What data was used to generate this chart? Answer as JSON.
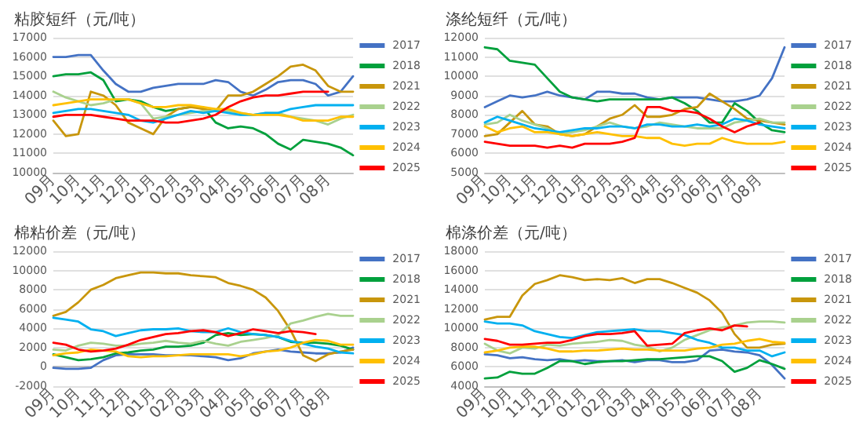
{
  "chart_data": [
    {
      "type": "line",
      "title": "粘胶短纤（元/吨）",
      "categories": [
        "09月",
        null,
        "10月",
        null,
        "11月",
        null,
        "12月",
        null,
        "01月",
        null,
        "02月",
        null,
        "03月",
        null,
        "04月",
        null,
        "05月",
        null,
        "06月",
        null,
        "07月",
        null,
        "08月",
        null,
        null
      ],
      "ylim": [
        10000,
        17000
      ],
      "yticks": [
        10000,
        11000,
        12000,
        13000,
        14000,
        15000,
        16000,
        17000
      ],
      "grid": "y",
      "legend": "right",
      "series": [
        {
          "name": "2017",
          "color": "#4472c4",
          "values": [
            16000,
            16000,
            16100,
            16100,
            15300,
            14600,
            14200,
            14200,
            14400,
            14500,
            14600,
            14600,
            14600,
            14800,
            14700,
            14200,
            14000,
            14300,
            14700,
            14800,
            14800,
            14600,
            14000,
            14200,
            15000
          ]
        },
        {
          "name": "2018",
          "color": "#00a03c",
          "values": [
            15000,
            15100,
            15100,
            15200,
            14800,
            13700,
            13800,
            13700,
            13400,
            13200,
            13300,
            13400,
            13400,
            12600,
            12300,
            12400,
            12300,
            12000,
            11500,
            11200,
            11700,
            11600,
            11500,
            11300,
            10900
          ]
        },
        {
          "name": "2021",
          "color": "#c8960c",
          "values": [
            12700,
            11900,
            12000,
            14200,
            14000,
            13500,
            12600,
            12300,
            12000,
            12900,
            13300,
            13400,
            13300,
            13200,
            14000,
            14000,
            14200,
            14600,
            15000,
            15500,
            15600,
            15300,
            14500,
            14200,
            14200
          ]
        },
        {
          "name": "2022",
          "color": "#a9d18e",
          "values": [
            14200,
            13900,
            13700,
            13500,
            13600,
            13800,
            13800,
            13600,
            12800,
            12900,
            13000,
            13100,
            13200,
            13200,
            13200,
            13100,
            13000,
            13100,
            13100,
            12900,
            12800,
            12700,
            12500,
            12800,
            13000
          ]
        },
        {
          "name": "2023",
          "color": "#00b0f0",
          "values": [
            13100,
            13200,
            13300,
            13300,
            13200,
            13100,
            13000,
            12700,
            12600,
            12800,
            13000,
            13200,
            13100,
            13200,
            13100,
            13000,
            13000,
            13100,
            13100,
            13300,
            13400,
            13500,
            13500,
            13500,
            13500
          ]
        },
        {
          "name": "2024",
          "color": "#ffc000",
          "values": [
            13500,
            13600,
            13700,
            13800,
            13800,
            13800,
            13800,
            13600,
            13400,
            13400,
            13500,
            13500,
            13400,
            13300,
            13300,
            13100,
            13000,
            13000,
            13000,
            12900,
            12700,
            12700,
            12700,
            12900,
            12900
          ]
        },
        {
          "name": "2025",
          "color": "#ff0000",
          "values": [
            12900,
            13000,
            13000,
            13000,
            12900,
            12800,
            12700,
            12700,
            12700,
            12600,
            12600,
            12700,
            12800,
            13000,
            13400,
            13700,
            13900,
            14000,
            14000,
            14100,
            14200,
            14200,
            14200,
            null,
            null
          ]
        }
      ]
    },
    {
      "type": "line",
      "title": "涤纶短纤（元/吨）",
      "categories": [
        "09月",
        null,
        "10月",
        null,
        "11月",
        null,
        "12月",
        null,
        "01月",
        null,
        "02月",
        null,
        "03月",
        null,
        "04月",
        null,
        "05月",
        null,
        "06月",
        null,
        "07月",
        null,
        "08月",
        null,
        null
      ],
      "ylim": [
        5000,
        12000
      ],
      "yticks": [
        5000,
        6000,
        7000,
        8000,
        9000,
        10000,
        11000,
        12000
      ],
      "grid": "y",
      "legend": "right",
      "series": [
        {
          "name": "2017",
          "color": "#4472c4",
          "values": [
            8400,
            8700,
            9000,
            8900,
            9000,
            9200,
            9000,
            8900,
            8800,
            9200,
            9200,
            9100,
            9100,
            8900,
            8800,
            8900,
            8900,
            8900,
            8800,
            8700,
            8700,
            8800,
            9000,
            9900,
            11500
          ]
        },
        {
          "name": "2018",
          "color": "#00a03c",
          "values": [
            11500,
            11400,
            10800,
            10700,
            10600,
            9900,
            9200,
            8900,
            8800,
            8700,
            8800,
            8800,
            8800,
            8800,
            8800,
            8900,
            8600,
            8200,
            7600,
            7600,
            8600,
            8200,
            7600,
            7200,
            7100
          ]
        },
        {
          "name": "2021",
          "color": "#c8960c",
          "values": [
            6900,
            7000,
            7600,
            8200,
            7500,
            7400,
            7000,
            6900,
            7000,
            7400,
            7800,
            8000,
            8500,
            7900,
            7900,
            8000,
            8300,
            8400,
            9100,
            8700,
            8300,
            7800,
            7700,
            7600,
            7500
          ]
        },
        {
          "name": "2022",
          "color": "#a9d18e",
          "values": [
            7500,
            7600,
            8000,
            7700,
            7500,
            7300,
            7000,
            7100,
            7200,
            7400,
            7600,
            7400,
            7300,
            7400,
            7600,
            7500,
            7400,
            7300,
            7300,
            7300,
            7600,
            7700,
            7800,
            7600,
            7600
          ]
        },
        {
          "name": "2023",
          "color": "#00b0f0",
          "values": [
            7600,
            7900,
            7700,
            7500,
            7300,
            7200,
            7100,
            7200,
            7300,
            7300,
            7400,
            7400,
            7300,
            7500,
            7500,
            7400,
            7400,
            7500,
            7400,
            7500,
            7800,
            7700,
            7500,
            7400,
            7300
          ]
        },
        {
          "name": "2024",
          "color": "#ffc000",
          "values": [
            7400,
            7100,
            7300,
            7400,
            7100,
            7100,
            7000,
            6900,
            7000,
            7100,
            7000,
            6900,
            6900,
            6800,
            6800,
            6500,
            6400,
            6500,
            6500,
            6800,
            6600,
            6500,
            6500,
            6500,
            6600
          ]
        },
        {
          "name": "2025",
          "color": "#ff0000",
          "values": [
            6600,
            6500,
            6400,
            6400,
            6400,
            6300,
            6400,
            6300,
            6500,
            6500,
            6500,
            6600,
            6800,
            8400,
            8400,
            8200,
            8200,
            8100,
            7800,
            7400,
            7100,
            7400,
            7600,
            null,
            null
          ]
        }
      ]
    },
    {
      "type": "line",
      "title": "棉粘价差（元/吨）",
      "categories": [
        "09月",
        null,
        "10月",
        null,
        "11月",
        null,
        "12月",
        null,
        "01月",
        null,
        "02月",
        null,
        "03月",
        null,
        "04月",
        null,
        "05月",
        null,
        "06月",
        null,
        "07月",
        null,
        "08月",
        null,
        null
      ],
      "ylim": [
        -2000,
        12000
      ],
      "yticks": [
        -2000,
        0,
        2000,
        4000,
        6000,
        8000,
        10000,
        12000
      ],
      "grid": "y",
      "legend": "right",
      "series": [
        {
          "name": "2017",
          "color": "#4472c4",
          "values": [
            -100,
            -200,
            -200,
            -100,
            700,
            1200,
            1300,
            1300,
            1300,
            1200,
            1200,
            1200,
            1100,
            1000,
            700,
            900,
            1400,
            1600,
            1800,
            1600,
            1500,
            1400,
            1400,
            1500,
            2000
          ]
        },
        {
          "name": "2018",
          "color": "#00a03c",
          "values": [
            1300,
            1000,
            700,
            800,
            1000,
            1400,
            1500,
            1700,
            1800,
            2100,
            2100,
            2200,
            2500,
            3300,
            3500,
            3300,
            3400,
            3300,
            3100,
            2600,
            2500,
            2500,
            2400,
            2200,
            1800
          ]
        },
        {
          "name": "2021",
          "color": "#c8960c",
          "values": [
            5300,
            5700,
            6700,
            8000,
            8500,
            9200,
            9500,
            9800,
            9800,
            9700,
            9700,
            9500,
            9400,
            9300,
            8700,
            8400,
            8000,
            7200,
            5800,
            3800,
            1200,
            600,
            1300,
            1600,
            1800
          ]
        },
        {
          "name": "2022",
          "color": "#a9d18e",
          "values": [
            1800,
            1700,
            2200,
            2500,
            2400,
            2200,
            2200,
            2400,
            2500,
            2700,
            2500,
            2400,
            2700,
            2400,
            2200,
            2600,
            2800,
            3000,
            3300,
            4500,
            4800,
            5200,
            5500,
            5300,
            5300
          ]
        },
        {
          "name": "2023",
          "color": "#00b0f0",
          "values": [
            5100,
            4900,
            4700,
            3900,
            3700,
            3200,
            3500,
            3800,
            3900,
            3900,
            4000,
            3700,
            3600,
            3600,
            4000,
            3600,
            3400,
            3300,
            3100,
            2700,
            2400,
            2100,
            1900,
            1500,
            1400
          ]
        },
        {
          "name": "2024",
          "color": "#ffc000",
          "values": [
            1200,
            1400,
            1500,
            1800,
            1700,
            1600,
            1100,
            1000,
            1100,
            1100,
            1200,
            1300,
            1300,
            1300,
            1300,
            1100,
            1300,
            1600,
            1700,
            2000,
            2500,
            2800,
            2700,
            2300,
            2300
          ]
        },
        {
          "name": "2025",
          "color": "#ff0000",
          "values": [
            2500,
            2300,
            1800,
            1600,
            1700,
            1900,
            2300,
            2800,
            3100,
            3400,
            3500,
            3700,
            3800,
            3600,
            3200,
            3500,
            3900,
            3700,
            3500,
            3700,
            3600,
            3400,
            null,
            null,
            null
          ]
        }
      ]
    },
    {
      "type": "line",
      "title": "棉涤价差（元/吨）",
      "categories": [
        "09月",
        null,
        "10月",
        null,
        "11月",
        null,
        "12月",
        null,
        "01月",
        null,
        "02月",
        null,
        "03月",
        null,
        "04月",
        null,
        "05月",
        null,
        "06月",
        null,
        "07月",
        null,
        "08月",
        null,
        null
      ],
      "ylim": [
        4000,
        18000
      ],
      "yticks": [
        4000,
        6000,
        8000,
        10000,
        12000,
        14000,
        16000,
        18000
      ],
      "grid": "y",
      "legend": "right",
      "series": [
        {
          "name": "2017",
          "color": "#4472c4",
          "values": [
            7300,
            7200,
            6900,
            7000,
            6800,
            6700,
            6800,
            6600,
            6700,
            6600,
            6600,
            6700,
            6500,
            6700,
            6700,
            6500,
            6500,
            6700,
            7700,
            7800,
            7600,
            7500,
            7200,
            6200,
            4800
          ]
        },
        {
          "name": "2018",
          "color": "#00a03c",
          "values": [
            4800,
            4900,
            5500,
            5300,
            5300,
            5900,
            6600,
            6600,
            6300,
            6500,
            6600,
            6600,
            6700,
            6800,
            6800,
            6900,
            7000,
            7100,
            7100,
            6600,
            5500,
            5900,
            6700,
            6300,
            5800
          ]
        },
        {
          "name": "2021",
          "color": "#c8960c",
          "values": [
            10900,
            11200,
            11200,
            13400,
            14600,
            15000,
            15500,
            15300,
            15000,
            15100,
            15000,
            15200,
            14700,
            15100,
            15100,
            14700,
            14200,
            13700,
            12900,
            11600,
            9400,
            8000,
            8000,
            8300,
            8400
          ]
        },
        {
          "name": "2022",
          "color": "#a9d18e",
          "values": [
            8400,
            7700,
            7400,
            8000,
            7900,
            8300,
            8200,
            8400,
            8500,
            8600,
            8800,
            8700,
            8300,
            8100,
            7600,
            8000,
            8800,
            9300,
            9800,
            10100,
            10300,
            10600,
            10700,
            10700,
            10600
          ]
        },
        {
          "name": "2023",
          "color": "#00b0f0",
          "values": [
            10700,
            10500,
            10500,
            10300,
            9700,
            9400,
            9100,
            9000,
            9300,
            9600,
            9700,
            9800,
            9900,
            9700,
            9700,
            9500,
            9300,
            8800,
            8500,
            8000,
            8000,
            7700,
            7700,
            7100,
            7500
          ]
        },
        {
          "name": "2024",
          "color": "#ffc000",
          "values": [
            7500,
            7700,
            8000,
            8100,
            8100,
            7900,
            7600,
            7600,
            7700,
            7700,
            7800,
            7900,
            7800,
            7800,
            7700,
            7700,
            7700,
            7900,
            8000,
            8300,
            8400,
            8700,
            8900,
            8600,
            8500
          ]
        },
        {
          "name": "2025",
          "color": "#ff0000",
          "values": [
            8900,
            8700,
            8300,
            8300,
            8400,
            8500,
            8500,
            8800,
            9200,
            9400,
            9400,
            9500,
            9700,
            8200,
            8300,
            8400,
            9500,
            9800,
            10000,
            9800,
            10300,
            10200,
            null,
            null,
            null
          ]
        }
      ]
    }
  ]
}
